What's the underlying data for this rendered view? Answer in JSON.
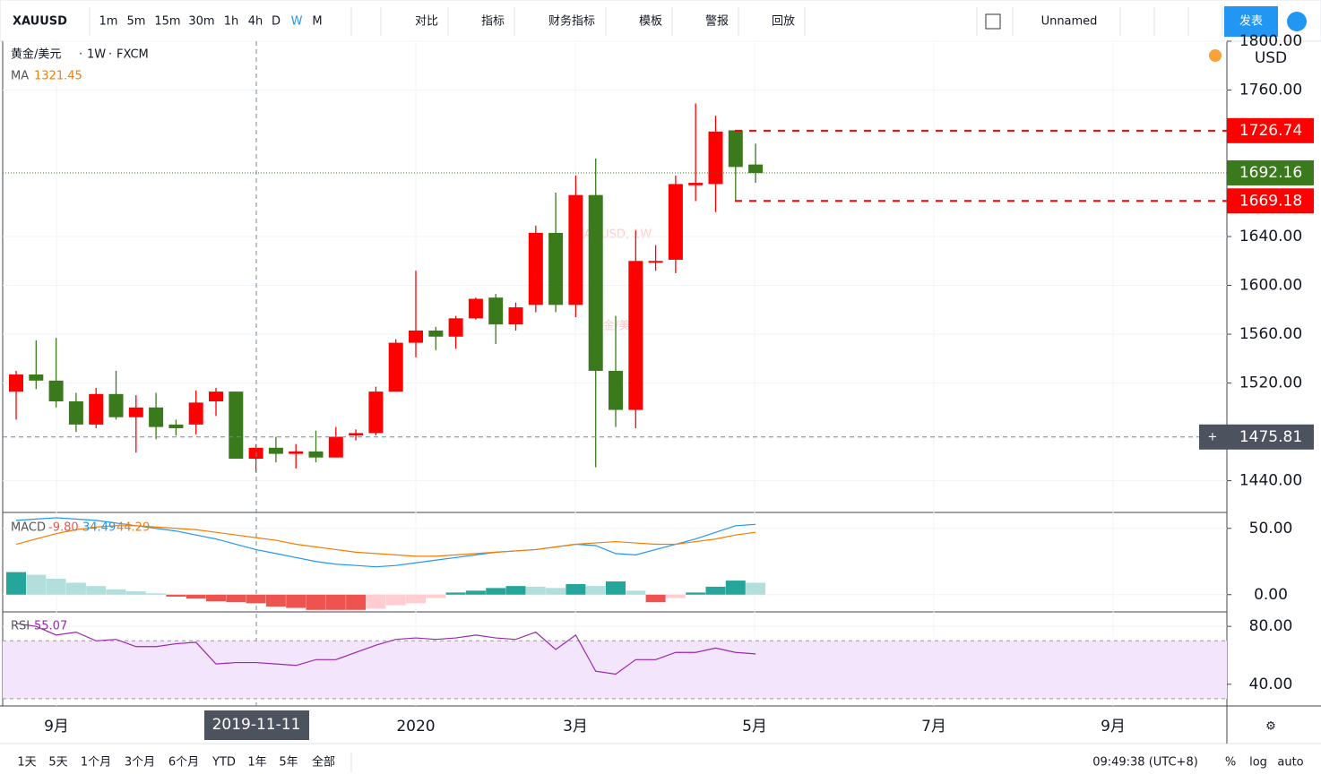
{
  "toolbar": {
    "symbol": "XAUUSD",
    "intervals": [
      "1m",
      "5m",
      "15m",
      "30m",
      "1h",
      "4h",
      "D",
      "W",
      "M"
    ],
    "buttons": [
      "对比",
      "指标",
      "财务指标",
      "模板",
      "警报",
      "回放"
    ],
    "layout_name": "Unnamed",
    "publish": "发表"
  },
  "chart": {
    "symbol": "黄金/美元",
    "interval": "1W",
    "exchange": "FXCM",
    "watermark": "XAUUSD, 1W",
    "watermark_sub": "黄金/美元",
    "ma_label": "MA",
    "ma_value": 1321.45,
    "currency": "USD",
    "ylim": [
      1414,
      1800
    ],
    "yticks": [
      {
        "value": 1800,
        "label": "1800.00"
      },
      {
        "value": 1760,
        "label": "1760.00"
      },
      {
        "value": 1640,
        "label": "1640.00"
      },
      {
        "value": 1600,
        "label": "1600.00"
      },
      {
        "value": 1560,
        "label": "1560.00"
      },
      {
        "value": 1520,
        "label": "1520.00"
      },
      {
        "value": 1440,
        "label": "1440.00"
      }
    ],
    "price_markers": [
      1726.74,
      1692.16,
      1669.18
    ],
    "crosshair_price": 1475.81,
    "crosshair_date": "2019-11-11",
    "time_labels": [
      "9月",
      "2020",
      "3月",
      "5月",
      "7月",
      "9月"
    ],
    "candles": {
      "open": [
        1513,
        1527,
        1522,
        1505,
        1486,
        1511,
        1492,
        1500,
        1486,
        1486,
        1505,
        1513,
        1458,
        1467,
        1462,
        1464,
        1459,
        1477,
        1479,
        1513,
        1553,
        1563,
        1558,
        1573,
        1590,
        1568,
        1584,
        1643,
        1584,
        1674,
        1530,
        1498,
        1620,
        1621,
        1682,
        1683,
        1727,
        1699
      ],
      "high": [
        1530,
        1555,
        1557,
        1512,
        1516,
        1530,
        1510,
        1512,
        1490,
        1514,
        1516,
        1513,
        1470,
        1476,
        1470,
        1481,
        1484,
        1482,
        1517,
        1556,
        1612,
        1566,
        1575,
        1590,
        1593,
        1586,
        1649,
        1676,
        1690,
        1704,
        1575,
        1645,
        1633,
        1690,
        1749,
        1739,
        1727,
        1716
      ],
      "low": [
        1490,
        1515,
        1500,
        1480,
        1483,
        1490,
        1463,
        1474,
        1477,
        1478,
        1493,
        1458,
        1447,
        1455,
        1450,
        1455,
        1459,
        1473,
        1477,
        1513,
        1541,
        1547,
        1548,
        1572,
        1552,
        1563,
        1578,
        1578,
        1574,
        1451,
        1484,
        1483,
        1612,
        1610,
        1669,
        1660,
        1670,
        1684
      ],
      "close": [
        1527,
        1522,
        1505,
        1486,
        1511,
        1492,
        1500,
        1484,
        1483,
        1504,
        1513,
        1458,
        1467,
        1462,
        1464,
        1459,
        1476,
        1479,
        1513,
        1553,
        1563,
        1558,
        1573,
        1589,
        1568,
        1582,
        1643,
        1584,
        1674,
        1530,
        1498,
        1620,
        1620,
        1683,
        1684,
        1726,
        1697,
        1692
      ]
    }
  },
  "macd": {
    "label": "MACD",
    "values": [
      {
        "value": -9.8,
        "label": "-9.80"
      },
      34.49,
      44.29
    ],
    "ylim": [
      -13,
      62
    ],
    "yticks": [
      {
        "value": 50,
        "label": "50.00"
      },
      {
        "value": 0,
        "label": "0.00"
      }
    ],
    "macd": [
      56,
      57,
      58,
      57,
      56,
      54,
      52,
      50,
      48,
      45,
      42,
      38,
      34,
      31,
      28,
      25,
      23,
      22,
      21,
      22,
      24,
      26,
      28,
      30,
      32,
      33,
      34,
      36,
      38,
      37,
      31,
      30,
      34,
      38,
      42,
      47,
      52,
      53
    ],
    "signal": [
      38,
      42,
      46,
      49,
      51,
      52,
      52,
      51,
      50,
      49,
      47,
      45,
      43,
      41,
      38,
      36,
      34,
      32,
      31,
      30,
      29,
      29,
      30,
      31,
      32,
      33,
      34,
      36,
      38,
      39,
      40,
      39,
      38,
      38,
      40,
      42,
      45,
      47
    ],
    "hist": [
      17,
      15,
      12,
      9,
      6.5,
      4,
      2.5,
      1,
      -1.5,
      -3,
      -5,
      -5.7,
      -6.5,
      -9,
      -10,
      -11.5,
      -11.5,
      -11.5,
      -10.6,
      -8,
      -6.5,
      -2.5,
      1.6,
      3,
      5,
      6.5,
      6,
      5,
      8,
      6.5,
      10,
      3,
      -5.7,
      -2.5,
      1.6,
      6,
      10.6,
      9
    ]
  },
  "rsi": {
    "label": "RSI",
    "value": 55.07,
    "ylim": [
      25,
      90
    ],
    "yticks": [
      {
        "value": 80,
        "label": "80.00"
      },
      {
        "value": 40,
        "label": "40.00"
      }
    ],
    "band": [
      70,
      30
    ],
    "values": [
      82,
      80,
      74,
      76,
      70,
      71,
      66,
      66,
      68,
      69,
      54,
      55,
      55,
      54,
      53,
      57,
      57,
      62,
      67,
      71,
      72,
      71,
      72,
      74,
      72,
      71,
      76,
      64,
      74,
      49,
      47,
      57,
      57,
      62,
      62,
      65,
      62,
      61
    ]
  },
  "footer": {
    "ranges": [
      "1天",
      "5天",
      "1个月",
      "3个月",
      "6个月",
      "YTD",
      "1年",
      "5年",
      "全部"
    ],
    "clock": "09:49:38 (UTC+8)",
    "percent": "%",
    "log": "log",
    "auto": "auto"
  }
}
